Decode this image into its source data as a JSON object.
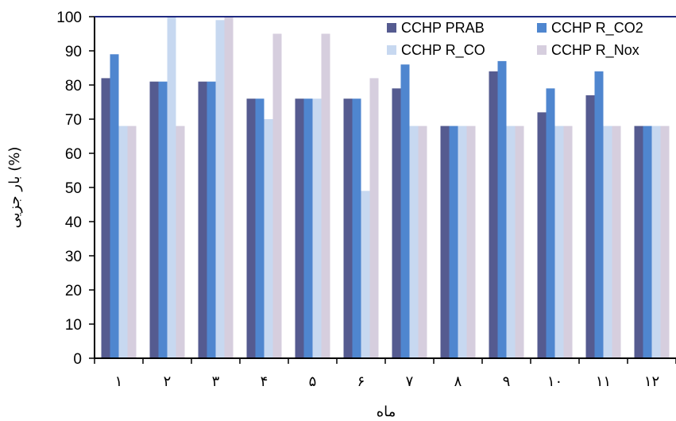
{
  "chart_data": {
    "type": "bar",
    "categories": [
      "۱",
      "۲",
      "۳",
      "۴",
      "۵",
      "۶",
      "۷",
      "۸",
      "۹",
      "۱۰",
      "۱۱",
      "۱۲"
    ],
    "series": [
      {
        "name": "CCHP PRAB",
        "color": "#555b90",
        "values": [
          82,
          81,
          81,
          76,
          76,
          76,
          79,
          68,
          84,
          72,
          77,
          68
        ]
      },
      {
        "name": "CCHP R_CO2",
        "color": "#4f86cf",
        "values": [
          89,
          81,
          81,
          76,
          76,
          76,
          86,
          68,
          87,
          79,
          84,
          68
        ]
      },
      {
        "name": "CCHP R_CO",
        "color": "#c7d8f0",
        "values": [
          68,
          100,
          99,
          70,
          76,
          49,
          68,
          68,
          68,
          68,
          68,
          68
        ]
      },
      {
        "name": "CCHP R_Nox",
        "color": "#d6cede",
        "values": [
          68,
          68,
          100,
          95,
          95,
          82,
          68,
          68,
          68,
          68,
          68,
          68
        ]
      }
    ],
    "ylim": [
      0,
      100
    ],
    "yticks": [
      0,
      10,
      20,
      30,
      40,
      50,
      60,
      70,
      80,
      90,
      100
    ],
    "xlabel": "ماه",
    "ylabel": "بار جزیی (%)",
    "legend_position": "top-right",
    "grid": false
  }
}
